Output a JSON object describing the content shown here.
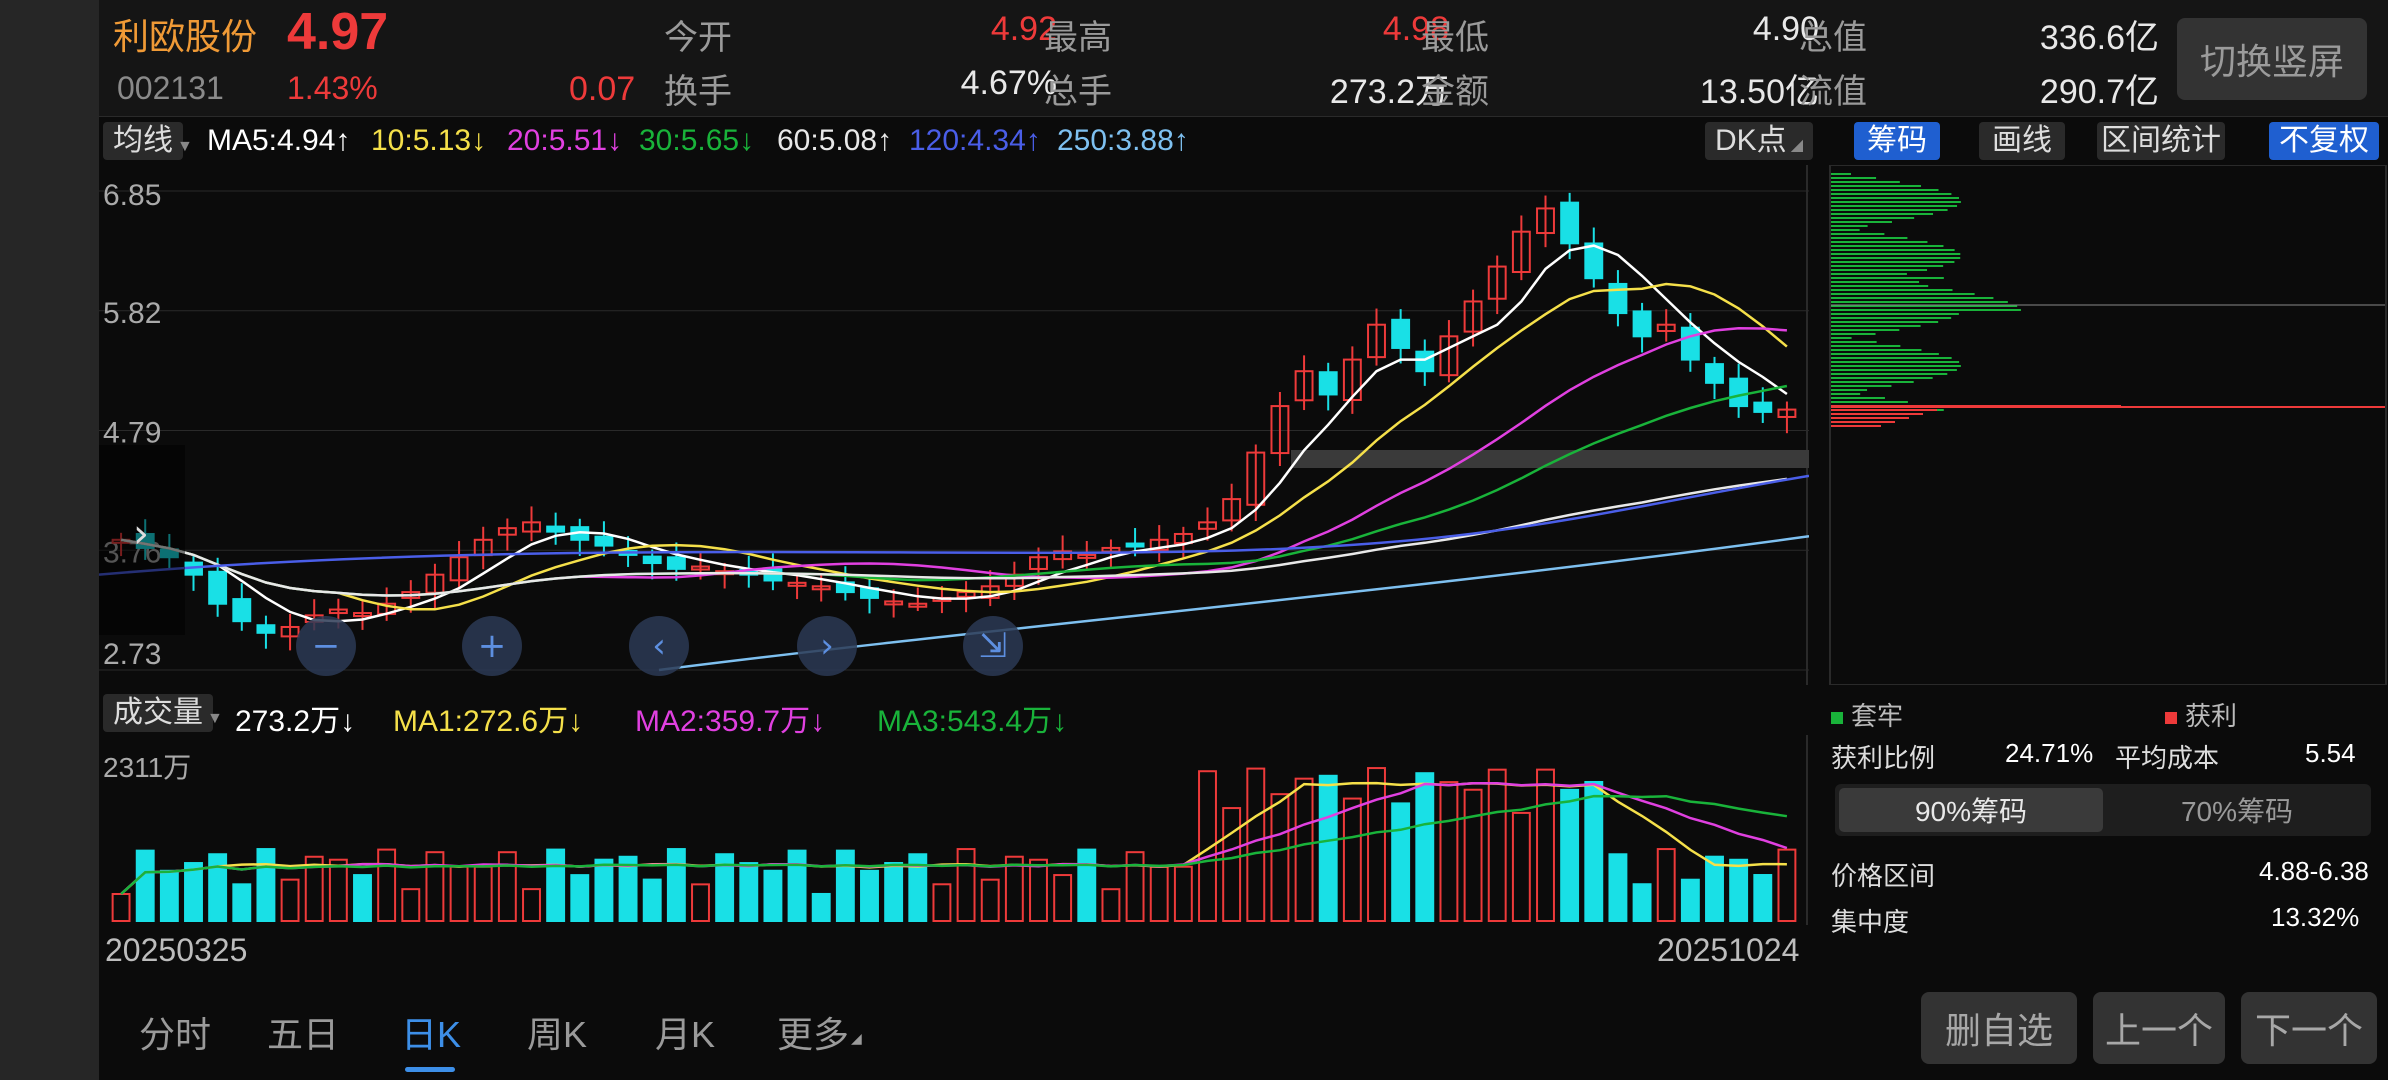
{
  "header": {
    "stock_name": "利欧股份",
    "price": "4.97",
    "code": "002131",
    "change_pct": "1.43%",
    "change_abs": "0.07",
    "fields": [
      {
        "label": "今开",
        "value": "4.92",
        "color": "#ee3a3a"
      },
      {
        "label": "最高",
        "value": "4.98",
        "color": "#ee3a3a"
      },
      {
        "label": "最低",
        "value": "4.90",
        "color": "#e8e8e8"
      },
      {
        "label": "总值",
        "value": "336.6亿",
        "color": "#e8e8e8"
      },
      {
        "label": "换手",
        "value": "4.67%",
        "color": "#e8e8e8"
      },
      {
        "label": "总手",
        "value": "273.2万",
        "color": "#e8e8e8"
      },
      {
        "label": "金额",
        "value": "13.50亿",
        "color": "#e8e8e8"
      },
      {
        "label": "流值",
        "value": "290.7亿",
        "color": "#e8e8e8"
      }
    ],
    "switch_button": "切换竖屏"
  },
  "ma_bar": {
    "selector": "均线",
    "items": [
      {
        "text": "MA5:4.94↑",
        "color": "#ffffff"
      },
      {
        "text": "10:5.13↓",
        "color": "#f5e04a"
      },
      {
        "text": "20:5.51↓",
        "color": "#e040e0"
      },
      {
        "text": "30:5.65↓",
        "color": "#19b33a"
      },
      {
        "text": "60:5.08↑",
        "color": "#e8e8e8"
      },
      {
        "text": "120:4.34↑",
        "color": "#4a5ee8"
      },
      {
        "text": "250:3.88↑",
        "color": "#7ec0f0"
      }
    ],
    "dk_label": "DK点",
    "tags": [
      "筹码",
      "画线",
      "区间统计",
      "不复权"
    ]
  },
  "price_axis": [
    "6.85",
    "5.82",
    "4.79",
    "3.76",
    "2.73"
  ],
  "volume_bar": {
    "selector": "成交量",
    "items": [
      {
        "text": "273.2万↓",
        "color": "#ffffff"
      },
      {
        "text": "MA1:272.6万↓",
        "color": "#f5e04a"
      },
      {
        "text": "MA2:359.7万↓",
        "color": "#e040e0"
      },
      {
        "text": "MA3:543.4万↓",
        "color": "#19b33a"
      }
    ],
    "max_label": "2311万"
  },
  "dates": {
    "start": "20250325",
    "end": "20251024"
  },
  "chip_panel": {
    "legend_trapped": "套牢",
    "legend_profit": "获利",
    "profit_ratio_label": "获利比例",
    "profit_ratio": "24.71%",
    "avg_cost_label": "平均成本",
    "avg_cost": "5.54",
    "seg_on": "90%筹码",
    "seg_off": "70%筹码",
    "range_label": "价格区间",
    "range_value": "4.88-6.38",
    "conc_label": "集中度",
    "conc_value": "13.32%"
  },
  "bottom_tabs": [
    "分时",
    "五日",
    "日K",
    "周K",
    "月K",
    "更多"
  ],
  "bottom_buttons": [
    "删自选",
    "上一个",
    "下一个"
  ],
  "colors": {
    "up": "#ee3a3a",
    "down": "#19e0e6",
    "accent": "#3d8fe8"
  },
  "chart_data": {
    "type": "candlestick",
    "price_range": [
      2.73,
      6.85
    ],
    "candles_close": [
      3.85,
      3.78,
      3.7,
      3.55,
      3.3,
      3.15,
      3.05,
      3.1,
      3.2,
      3.25,
      3.22,
      3.3,
      3.4,
      3.55,
      3.7,
      3.85,
      3.95,
      4.0,
      3.92,
      3.85,
      3.8,
      3.72,
      3.65,
      3.6,
      3.62,
      3.58,
      3.55,
      3.5,
      3.48,
      3.45,
      3.4,
      3.35,
      3.32,
      3.3,
      3.35,
      3.4,
      3.45,
      3.55,
      3.7,
      3.75,
      3.72,
      3.78,
      3.8,
      3.85,
      3.9,
      4.0,
      4.2,
      4.6,
      5.0,
      5.3,
      5.1,
      5.4,
      5.7,
      5.5,
      5.3,
      5.6,
      5.9,
      6.2,
      6.5,
      6.7,
      6.4,
      6.1,
      5.8,
      5.6,
      5.7,
      5.4,
      5.2,
      5.0,
      4.95,
      4.97
    ],
    "volume_unit": "万",
    "volume_max": 2311
  }
}
